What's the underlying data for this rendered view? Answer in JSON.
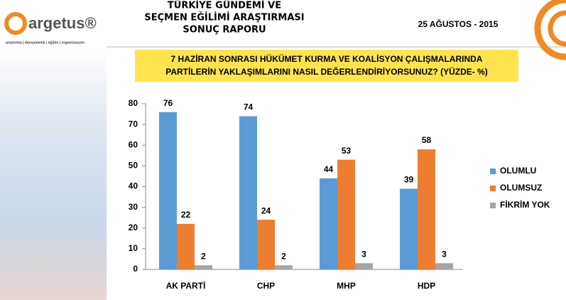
{
  "logo": {
    "name": "argetus®",
    "tagline": "araştırma | danışmanlık | eğitim | organizasyon"
  },
  "header": {
    "title_lines": [
      "TÜRKİYE GÜNDEMİ VE",
      "SEÇMEN EĞİLİMİ ARAŞTIRMASI",
      "SONUÇ RAPORU"
    ],
    "date": "25 AĞUSTOS - 2015"
  },
  "chart_data": {
    "type": "bar",
    "title_lines": [
      "7 HAZİRAN SONRASI  HÜKÜMET KURMA VE KOALİSYON ÇALIŞMALARINDA",
      "PARTİLERİN YAKLAŞIMLARINI NASIL DEĞERLENDİRİYORSUNUZ? (YÜZDE- %)"
    ],
    "categories": [
      "AK PARTİ",
      "CHP",
      "MHP",
      "HDP"
    ],
    "series": [
      {
        "name": "OLUMLU",
        "color": "#5b9bd5",
        "values": [
          76,
          74,
          44,
          39
        ]
      },
      {
        "name": "OLUMSUZ",
        "color": "#ed7d31",
        "values": [
          22,
          24,
          53,
          58
        ]
      },
      {
        "name": "FİKRİM YOK",
        "color": "#a5a5a5",
        "values": [
          2,
          2,
          3,
          3
        ]
      }
    ],
    "ylim": [
      0,
      80
    ],
    "yticks": [
      0,
      10,
      20,
      30,
      40,
      50,
      60,
      70,
      80
    ],
    "grid": false,
    "legend": "right"
  }
}
